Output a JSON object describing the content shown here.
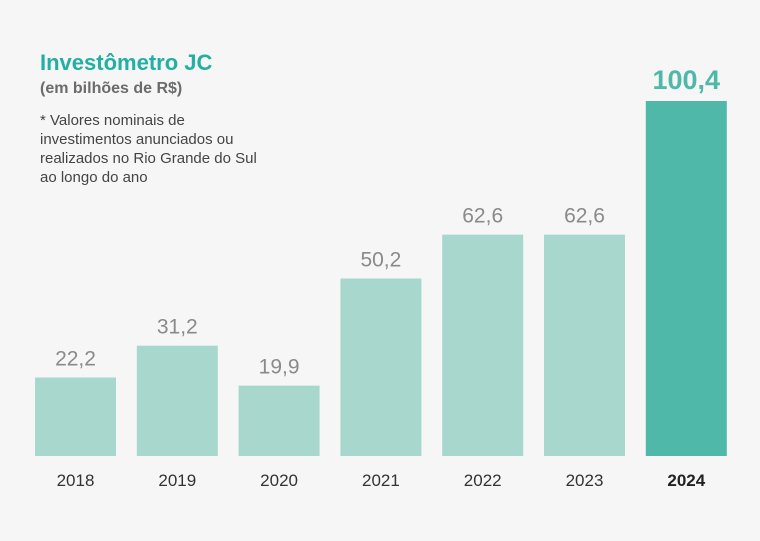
{
  "chart_data": {
    "type": "bar",
    "title": "Investômetro JC",
    "subtitle": "(em bilhões de R$)",
    "note": "* Valores nominais de investimentos anunciados ou realizados no Rio Grande do Sul ao longo do ano",
    "categories": [
      "2018",
      "2019",
      "2020",
      "2021",
      "2022",
      "2023",
      "2024"
    ],
    "values": [
      22.2,
      31.2,
      19.9,
      50.2,
      62.6,
      62.6,
      100.4
    ],
    "value_labels": [
      "22,2",
      "31,2",
      "19,9",
      "50,2",
      "62,6",
      "62,6",
      "100,4"
    ],
    "highlight_index": 6,
    "ylim": [
      0,
      100.4
    ],
    "grid": false,
    "colors": {
      "bar": "#a8d8cd",
      "highlight": "#4fb8a9",
      "title": "#22b0a3",
      "label": "#8a8a8a",
      "year": "#333333"
    }
  }
}
